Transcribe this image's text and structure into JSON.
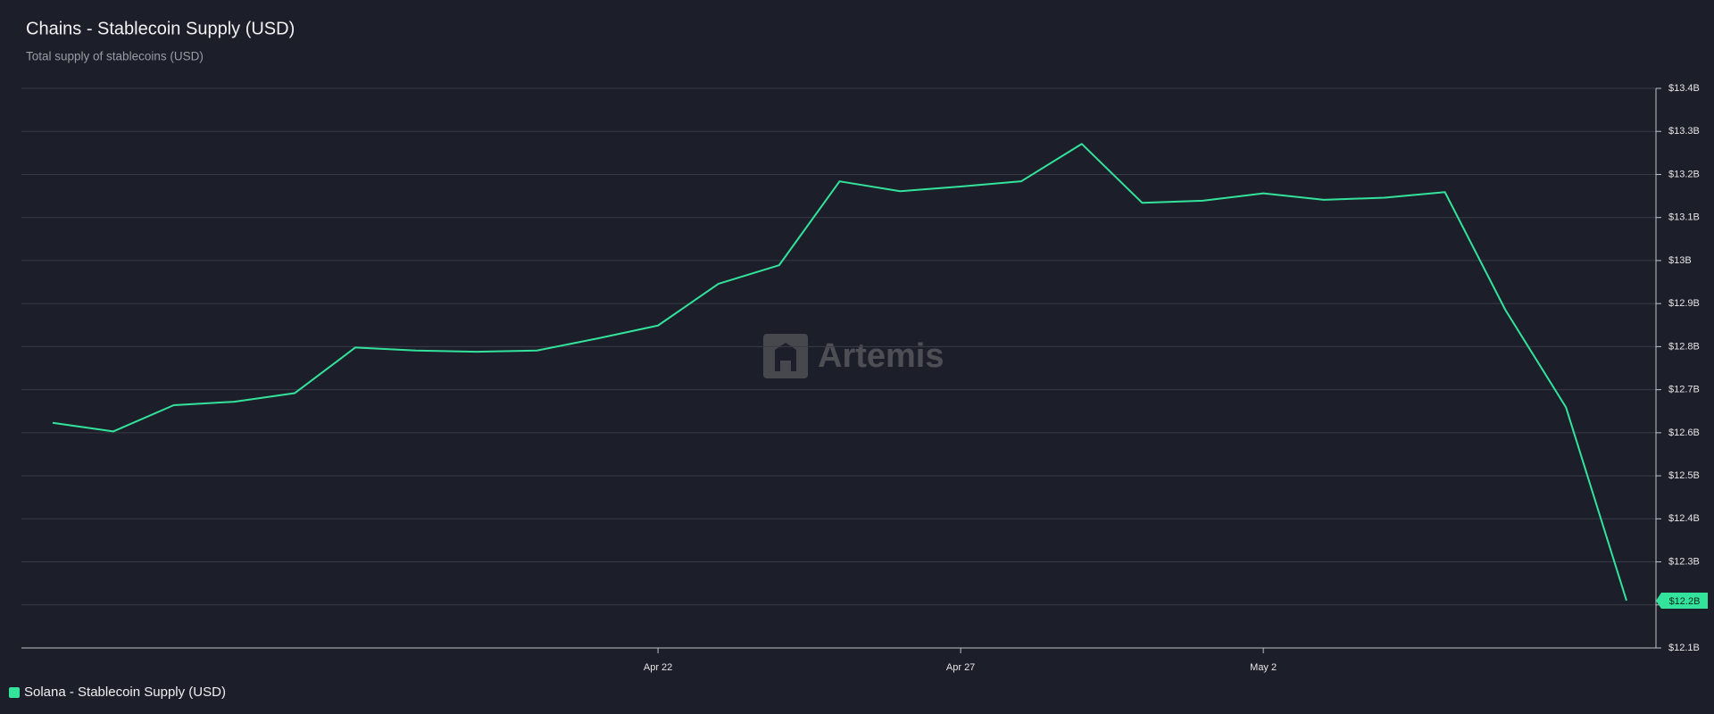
{
  "chart_data": {
    "type": "line",
    "title": "Chains - Stablecoin Supply (USD)",
    "subtitle": "Total supply of stablecoins (USD)",
    "watermark": "Artemis",
    "categories": [
      null,
      null,
      null,
      null,
      null,
      null,
      null,
      null,
      null,
      null,
      "Apr 22",
      null,
      null,
      null,
      null,
      "Apr 27",
      null,
      null,
      null,
      null,
      "May 2",
      null,
      null,
      null,
      null,
      null,
      null
    ],
    "series": [
      {
        "name": "Solana - Stablecoin Supply (USD)",
        "color": "#33e39b",
        "values": [
          12.623,
          12.603,
          12.664,
          12.672,
          12.692,
          12.798,
          12.791,
          12.788,
          12.791,
          12.819,
          12.849,
          12.946,
          12.989,
          13.184,
          13.161,
          13.172,
          13.184,
          13.271,
          13.134,
          13.139,
          13.156,
          13.141,
          13.146,
          13.159,
          12.885,
          12.659,
          12.21
        ],
        "last_value_label": "$12.2B"
      }
    ],
    "ylim": [
      12.1,
      13.4
    ],
    "yticks": [
      {
        "value": 12.1,
        "label": "$12.1B"
      },
      {
        "value": 12.2,
        "label": "$12.2B"
      },
      {
        "value": 12.3,
        "label": "$12.3B"
      },
      {
        "value": 12.4,
        "label": "$12.4B"
      },
      {
        "value": 12.5,
        "label": "$12.5B"
      },
      {
        "value": 12.6,
        "label": "$12.6B"
      },
      {
        "value": 12.7,
        "label": "$12.7B"
      },
      {
        "value": 12.8,
        "label": "$12.8B"
      },
      {
        "value": 12.9,
        "label": "$12.9B"
      },
      {
        "value": 13,
        "label": "$13B"
      },
      {
        "value": 13.1,
        "label": "$13.1B"
      },
      {
        "value": 13.2,
        "label": "$13.2B"
      },
      {
        "value": 13.3,
        "label": "$13.3B"
      },
      {
        "value": 13.4,
        "label": "$13.4B"
      }
    ],
    "grid": true,
    "y_axis_side": "right",
    "legend": "bottom-left"
  }
}
